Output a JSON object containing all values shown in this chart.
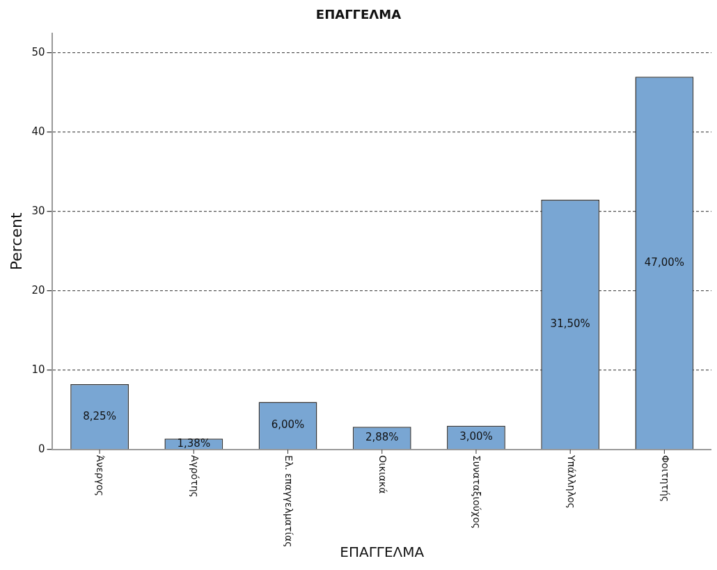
{
  "chart_data": {
    "type": "bar",
    "title": "ΕΠΑΓΓΕΛΜΑ",
    "xlabel": "ΕΠΑΓΓΕΛΜΑ",
    "ylabel": "Percent",
    "categories": [
      "Άνεργος",
      "Αγρότης",
      "Ελ. επαγγελματίας",
      "Οικιακά",
      "Συναταξιούχος",
      "Υπάλληλος",
      "Φοιτητής"
    ],
    "values": [
      8.25,
      1.38,
      6,
      2.88,
      3,
      31.5,
      47
    ],
    "value_labels": [
      "8,25%",
      "1,38%",
      "6,00%",
      "2,88%",
      "3,00%",
      "31,50%",
      "47,00%"
    ],
    "color": "#79a6d3",
    "ylim": [
      0,
      52.5
    ],
    "yticks": [
      0,
      10,
      20,
      30,
      40,
      50
    ],
    "grid": "y",
    "legend": false
  }
}
